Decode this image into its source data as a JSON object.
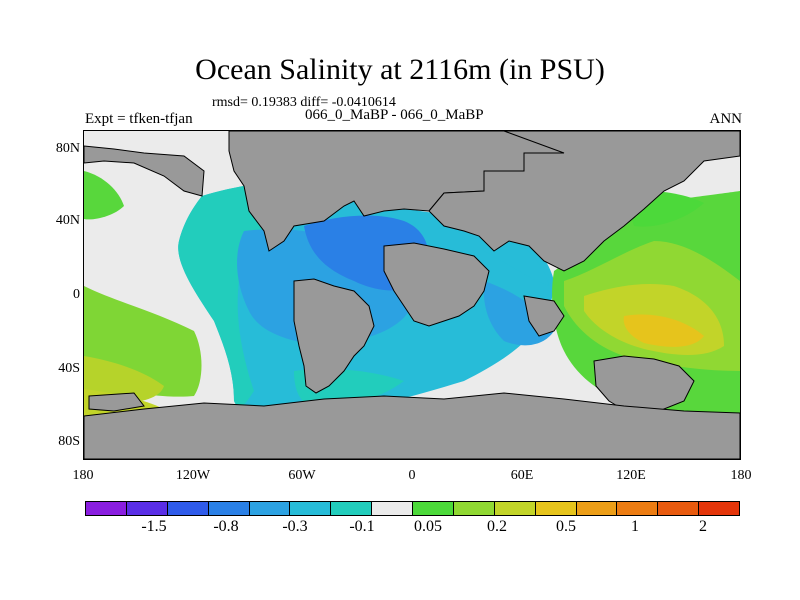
{
  "title": "Ocean Salinity at 2116m (in PSU)",
  "stats": "rmsd= 0.19383 diff= -0.0410614",
  "subtitle": "066_0_MaBP - 066_0_MaBP",
  "left_label": "Expt = tfken-tfjan",
  "right_label": "ANN",
  "lat_labels": [
    "80N",
    "40N",
    "0",
    "40S",
    "80S"
  ],
  "lon_labels": [
    "180",
    "120W",
    "60W",
    "0",
    "60E",
    "120E",
    "180"
  ],
  "colorbar": {
    "colors": [
      "#8a1ee0",
      "#5a2ee6",
      "#2f5bea",
      "#2a80e6",
      "#2ca2e2",
      "#27bcd8",
      "#22cdbc",
      "#ebebeb",
      "#4cd93a",
      "#90d833",
      "#c2d429",
      "#e6c41c",
      "#ec9e18",
      "#ec7c12",
      "#e85a0e",
      "#e4350a"
    ],
    "labels": [
      "-1.5",
      "-0.8",
      "-0.3",
      "-0.1",
      "0.05",
      "0.2",
      "0.5",
      "1",
      "2"
    ]
  }
}
